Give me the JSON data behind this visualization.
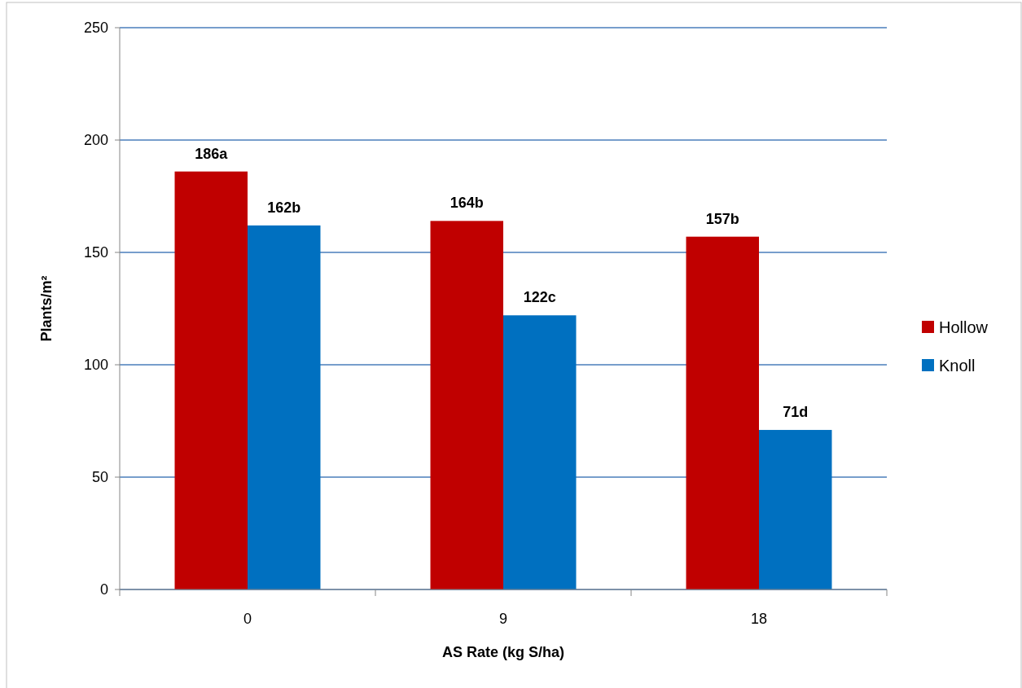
{
  "chart_data": {
    "type": "bar",
    "xlabel": "AS Rate (kg S/ha)",
    "ylabel": "Plants/m²",
    "categories": [
      "0",
      "9",
      "18"
    ],
    "series": [
      {
        "name": "Hollow",
        "color": "#c00000",
        "values": [
          186,
          164,
          157
        ],
        "value_labels": [
          "186a",
          "164b",
          "157b"
        ]
      },
      {
        "name": "Knoll",
        "color": "#0070c0",
        "values": [
          162,
          122,
          71
        ],
        "value_labels": [
          "162b",
          "122c",
          "71d"
        ]
      }
    ],
    "ylim": [
      0,
      250
    ],
    "yticks": [
      0,
      50,
      100,
      150,
      200,
      250
    ],
    "grid": "y",
    "legend": "right"
  }
}
